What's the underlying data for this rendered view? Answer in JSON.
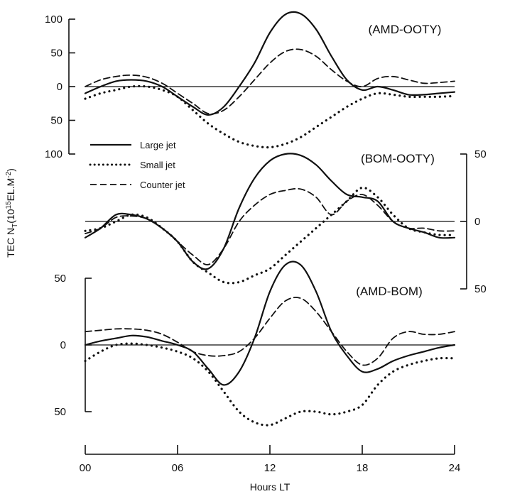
{
  "chart_data": {
    "type": "line",
    "x_axis": {
      "label": "Hours LT",
      "range": [
        0,
        24
      ],
      "ticks": [
        0,
        6,
        12,
        18,
        24
      ],
      "tick_labels": [
        "00",
        "06",
        "12",
        "18",
        "24"
      ]
    },
    "y_axis_label": "TEC N_T(10^15 EL.M^-2)",
    "y_axis_label_parts": {
      "main": "TEC N",
      "sub": "T",
      "mid": "(10",
      "sup1": "15",
      "end": "EL.M",
      "sup2": "-2",
      "close": ")"
    },
    "legend": {
      "placement": "upper-left of middle panel",
      "entries": [
        {
          "label": "Large jet",
          "style": "solid"
        },
        {
          "label": "Small jet",
          "style": "dotted"
        },
        {
          "label": "Counter jet",
          "style": "dashed"
        }
      ]
    },
    "panels": [
      {
        "label": "(AMD-OOTY)",
        "y_axis_side": "left",
        "y_range": [
          -100,
          100
        ],
        "y_ticks": [
          100,
          50,
          0,
          -50,
          -100
        ],
        "y_tick_labels": [
          "100",
          "50",
          "0",
          "50",
          "100"
        ],
        "series": [
          {
            "style": "solid",
            "x": [
              0,
              1,
              2,
              3,
              4,
              5,
              6,
              7,
              8,
              9,
              10,
              11,
              12,
              13,
              14,
              15,
              16,
              17,
              18,
              19,
              20,
              21,
              22,
              23,
              24
            ],
            "y": [
              -10,
              0,
              8,
              10,
              8,
              0,
              -15,
              -30,
              -42,
              -30,
              0,
              35,
              80,
              107,
              108,
              85,
              45,
              10,
              -5,
              0,
              -5,
              -12,
              -12,
              -10,
              -8
            ]
          },
          {
            "style": "dotted",
            "x": [
              0,
              1,
              2,
              3,
              4,
              5,
              6,
              7,
              8,
              9,
              10,
              11,
              12,
              13,
              14,
              15,
              16,
              17,
              18,
              19,
              20,
              21,
              22,
              23,
              24
            ],
            "y": [
              -18,
              -10,
              -5,
              0,
              0,
              -5,
              -15,
              -35,
              -55,
              -70,
              -82,
              -88,
              -90,
              -85,
              -75,
              -60,
              -45,
              -30,
              -18,
              -10,
              -12,
              -15,
              -15,
              -15,
              -14
            ]
          },
          {
            "style": "dashed",
            "x": [
              0,
              1,
              2,
              3,
              4,
              5,
              6,
              7,
              8,
              9,
              10,
              11,
              12,
              13,
              14,
              15,
              16,
              17,
              18,
              19,
              20,
              21,
              22,
              23,
              24
            ],
            "y": [
              0,
              10,
              15,
              17,
              14,
              5,
              -10,
              -25,
              -40,
              -35,
              -15,
              10,
              35,
              52,
              55,
              45,
              25,
              8,
              0,
              12,
              15,
              10,
              5,
              6,
              8
            ]
          }
        ]
      },
      {
        "label": "(BOM-OOTY)",
        "y_axis_side": "right",
        "y_range": [
          -50,
          50
        ],
        "y_ticks": [
          50,
          0,
          -50
        ],
        "y_tick_labels": [
          "50",
          "0",
          "50"
        ],
        "series": [
          {
            "style": "solid",
            "x": [
              0,
              1,
              2,
              3,
              4,
              5,
              6,
              7,
              8,
              9,
              10,
              11,
              12,
              13,
              14,
              15,
              16,
              17,
              18,
              19,
              20,
              21,
              22,
              23,
              24
            ],
            "y": [
              -12,
              -5,
              5,
              5,
              2,
              -5,
              -15,
              -30,
              -35,
              -20,
              10,
              32,
              45,
              50,
              49,
              42,
              30,
              20,
              18,
              15,
              0,
              -5,
              -8,
              -12,
              -12
            ]
          },
          {
            "style": "dotted",
            "x": [
              0,
              1,
              2,
              3,
              4,
              5,
              6,
              7,
              8,
              9,
              10,
              11,
              12,
              13,
              14,
              15,
              16,
              17,
              18,
              19,
              20,
              21,
              22,
              23,
              24
            ],
            "y": [
              -7,
              -5,
              0,
              5,
              3,
              -5,
              -15,
              -30,
              -38,
              -45,
              -45,
              -40,
              -35,
              -25,
              -15,
              -5,
              5,
              15,
              25,
              18,
              5,
              -5,
              -8,
              -10,
              -10
            ]
          },
          {
            "style": "dashed",
            "x": [
              0,
              1,
              2,
              3,
              4,
              5,
              6,
              7,
              8,
              9,
              10,
              11,
              12,
              13,
              14,
              15,
              16,
              17,
              18,
              19,
              20,
              21,
              22,
              23,
              24
            ],
            "y": [
              -9,
              -5,
              3,
              4,
              2,
              -5,
              -15,
              -25,
              -32,
              -20,
              0,
              12,
              20,
              23,
              24,
              18,
              5,
              15,
              20,
              12,
              0,
              -5,
              -5,
              -7,
              -7
            ]
          }
        ]
      },
      {
        "label": "(AMD-BOM)",
        "y_axis_side": "left",
        "y_range": [
          -50,
          50
        ],
        "y_ticks": [
          50,
          0,
          -50
        ],
        "y_tick_labels": [
          "50",
          "0",
          "50"
        ],
        "series": [
          {
            "style": "solid",
            "x": [
              0,
              1,
              2,
              3,
              4,
              5,
              6,
              7,
              8,
              9,
              10,
              11,
              12,
              13,
              14,
              15,
              16,
              17,
              18,
              19,
              20,
              21,
              22,
              23,
              24
            ],
            "y": [
              0,
              3,
              5,
              7,
              6,
              3,
              0,
              -5,
              -18,
              -30,
              -20,
              5,
              40,
              60,
              60,
              40,
              10,
              -8,
              -20,
              -18,
              -12,
              -8,
              -5,
              -2,
              0
            ]
          },
          {
            "style": "dotted",
            "x": [
              0,
              1,
              2,
              3,
              4,
              5,
              6,
              7,
              8,
              9,
              10,
              11,
              12,
              13,
              14,
              15,
              16,
              17,
              18,
              19,
              20,
              21,
              22,
              23,
              24
            ],
            "y": [
              -12,
              -5,
              0,
              1,
              0,
              -2,
              -5,
              -10,
              -20,
              -35,
              -50,
              -58,
              -60,
              -55,
              -50,
              -50,
              -52,
              -50,
              -45,
              -30,
              -20,
              -15,
              -12,
              -10,
              -10
            ]
          },
          {
            "style": "dashed",
            "x": [
              0,
              1,
              2,
              3,
              4,
              5,
              6,
              7,
              8,
              9,
              10,
              11,
              12,
              13,
              14,
              15,
              16,
              17,
              18,
              19,
              20,
              21,
              22,
              23,
              24
            ],
            "y": [
              10,
              11,
              12,
              12,
              11,
              8,
              2,
              -5,
              -8,
              -8,
              -5,
              5,
              20,
              33,
              35,
              25,
              10,
              -5,
              -15,
              -10,
              5,
              10,
              8,
              8,
              10
            ]
          }
        ]
      }
    ]
  }
}
